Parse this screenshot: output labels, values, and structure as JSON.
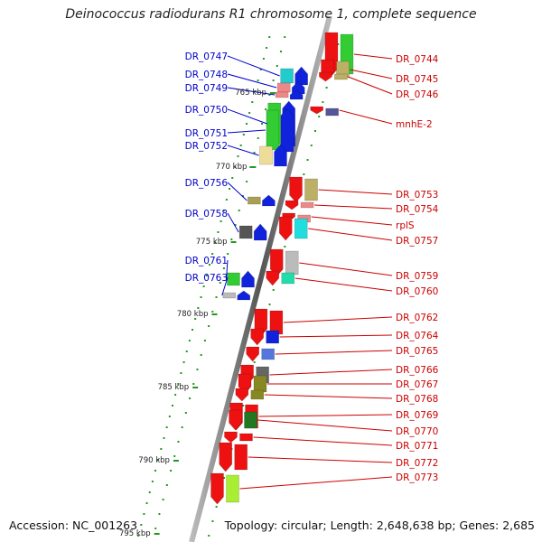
{
  "title": "Deinococcus radiodurans R1 chromosome 1, complete sequence",
  "footer": {
    "accession": "Accession: NC_001263",
    "summary": "Topology: circular; Length: 2,648,638 bp; Genes: 2,685"
  },
  "scale_labels": [
    "765 kbp",
    "770 kbp",
    "775 kbp",
    "780 kbp",
    "785 kbp",
    "790 kbp",
    "795 kbp"
  ],
  "colors": {
    "forward_arrow": "#ee1111",
    "reverse_arrow": "#1122dd",
    "forward_label": "#cc0000",
    "reverse_label": "#0000cc",
    "backbone": "#888888",
    "tick_dots": "#229922"
  },
  "genes_left": [
    {
      "label": "DR_0747",
      "block_color": "#22cccc"
    },
    {
      "label": "DR_0748",
      "block_color": "#ee8888"
    },
    {
      "label": "DR_0749",
      "block_color": "#ee8888"
    },
    {
      "label": "DR_0750",
      "block_color": "#33cc33"
    },
    {
      "label": "DR_0751",
      "block_color": "#33cc33"
    },
    {
      "label": "DR_0752",
      "block_color": "#eedd99"
    },
    {
      "label": "DR_0756",
      "block_color": "#aaa055"
    },
    {
      "label": "DR_0758",
      "block_color": "#555555"
    },
    {
      "label": "DR_0761",
      "block_color": "#33cc33"
    },
    {
      "label": "DR_0763",
      "block_color": "#bbbbbb"
    }
  ],
  "genes_right": [
    {
      "label": "DR_0744",
      "block_color": "#33cc33"
    },
    {
      "label": "DR_0745",
      "block_color": "#bbb066"
    },
    {
      "label": "DR_0746",
      "block_color": "#bbb066"
    },
    {
      "label": "mnhE-2",
      "block_color": "#555599"
    },
    {
      "label": "DR_0753",
      "block_color": "#bbb066"
    },
    {
      "label": "DR_0754",
      "block_color": "#ee8888"
    },
    {
      "label": "rplS",
      "block_color": "#ee8888"
    },
    {
      "label": "DR_0757",
      "block_color": "#22dddd"
    },
    {
      "label": "DR_0759",
      "block_color": "#bbbbbb"
    },
    {
      "label": "DR_0760",
      "block_color": "#22ddaa"
    },
    {
      "label": "DR_0762",
      "block_color": "#ee1111"
    },
    {
      "label": "DR_0764",
      "block_color": "#1122dd"
    },
    {
      "label": "DR_0765",
      "block_color": "#5577dd"
    },
    {
      "label": "DR_0766",
      "block_color": "#666666"
    },
    {
      "label": "DR_0767",
      "block_color": "#888822"
    },
    {
      "label": "DR_0768",
      "block_color": "#888822"
    },
    {
      "label": "DR_0769",
      "block_color": "#ee1111"
    },
    {
      "label": "DR_0770",
      "block_color": "#227722"
    },
    {
      "label": "DR_0771",
      "block_color": "#ee1111"
    },
    {
      "label": "DR_0772",
      "block_color": "#ee1111"
    },
    {
      "label": "DR_0773",
      "block_color": "#aaee33"
    }
  ]
}
